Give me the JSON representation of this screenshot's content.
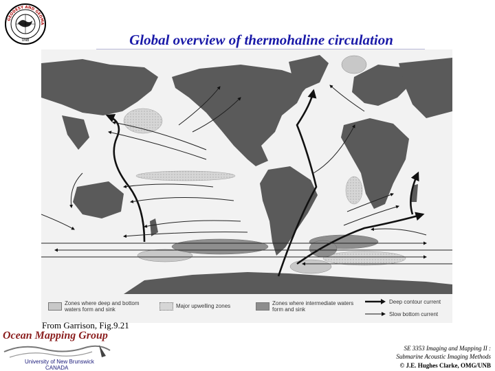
{
  "title": "Global overview of thermohaline circulation",
  "logo_top": {
    "text": "GEODESY AND GEOMATICS ENGINEERING · UNB"
  },
  "legend": {
    "deep_bottom": "Zones where deep and bottom waters form and sink",
    "upwelling": "Major upwelling zones",
    "intermediate": "Zones where intermediate waters form and sink",
    "deep_contour": "Deep contour current",
    "slow_bottom": "Slow bottom current"
  },
  "caption": "From Garrison, Fig.9.21",
  "footer": {
    "group": "Ocean Mapping Group",
    "university": "University of New Brunswick",
    "country": "CANADA",
    "course_line1": "SE 3353 Imaging and Mapping II :",
    "course_line2": "Submarine Acoustic Imaging Methods",
    "copyright": "© J.E. Hughes Clarke, OMG/UNB"
  },
  "colors": {
    "title": "#1a1aa8",
    "land": "#555555",
    "ocean": "#f2f2f2",
    "group": "#8b1f1f"
  }
}
